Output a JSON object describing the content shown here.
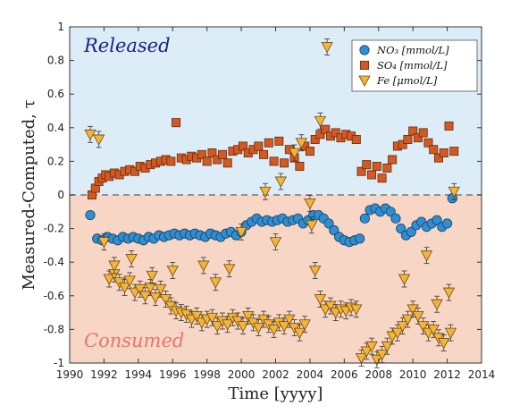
{
  "colors": {
    "released_bg": "#dcedf8",
    "consumed_bg": "#f8d6c6",
    "no3": "#2e8fd0",
    "so4": "#d05a22",
    "fe": "#f4b43a",
    "released_text": "#1a237e",
    "consumed_text": "#e8746a"
  },
  "chart_data": {
    "type": "scatter",
    "xlabel": "Time [yyyy]",
    "ylabel": "Measured-Computed, τ",
    "xlim": [
      1990,
      2014
    ],
    "ylim": [
      -1,
      1
    ],
    "x_ticks": [
      1990,
      1992,
      1994,
      1996,
      1998,
      2000,
      2002,
      2004,
      2006,
      2008,
      2010,
      2012,
      2014
    ],
    "y_ticks": [
      -1,
      -0.8,
      -0.6,
      -0.4,
      -0.2,
      0,
      0.2,
      0.4,
      0.6,
      0.8,
      1
    ],
    "x_tick_labels": [
      "1990",
      "1992",
      "1994",
      "1996",
      "1998",
      "2000",
      "2002",
      "2004",
      "2006",
      "2008",
      "2010",
      "2012",
      "2014"
    ],
    "y_tick_labels": [
      "-1",
      "-0.8",
      "-0.6",
      "-0.4",
      "-0.2",
      "0",
      "0.2",
      "0.4",
      "0.6",
      "0.8",
      "1"
    ],
    "zero_line": "dashed",
    "regions": {
      "released": "Released",
      "consumed": "Consumed"
    },
    "legend": {
      "placement": "top-right",
      "entries": [
        "NO₃ [mmol/L]",
        "SO₄ [mmol/L]",
        "Fe [μmol/L]"
      ]
    },
    "series": [
      {
        "name": "NO₃ [mmol/L]",
        "marker": "circle",
        "color": "#2e8fd0",
        "x": [
          1991.2,
          1991.6,
          1991.9,
          1992.2,
          1992.5,
          1992.8,
          1993.1,
          1993.4,
          1993.7,
          1994.0,
          1994.3,
          1994.6,
          1994.9,
          1995.2,
          1995.5,
          1995.8,
          1996.1,
          1996.4,
          1996.7,
          1997.0,
          1997.3,
          1997.6,
          1997.9,
          1998.2,
          1998.5,
          1998.8,
          1999.1,
          1999.4,
          1999.7,
          2000.0,
          2000.3,
          2000.6,
          2000.9,
          2001.2,
          2001.5,
          2001.8,
          2002.1,
          2002.4,
          2002.7,
          2003.0,
          2003.3,
          2003.6,
          2003.9,
          2004.2,
          2004.5,
          2004.8,
          2005.1,
          2005.4,
          2005.7,
          2006.0,
          2006.3,
          2006.6,
          2006.9,
          2007.2,
          2007.5,
          2007.8,
          2008.1,
          2008.4,
          2008.7,
          2009.0,
          2009.3,
          2009.6,
          2009.9,
          2010.2,
          2010.5,
          2010.8,
          2011.1,
          2011.4,
          2011.7,
          2012.0,
          2012.3
        ],
        "y": [
          -0.12,
          -0.26,
          -0.27,
          -0.25,
          -0.26,
          -0.27,
          -0.25,
          -0.26,
          -0.25,
          -0.26,
          -0.27,
          -0.25,
          -0.26,
          -0.24,
          -0.25,
          -0.24,
          -0.23,
          -0.24,
          -0.23,
          -0.24,
          -0.23,
          -0.24,
          -0.25,
          -0.23,
          -0.24,
          -0.25,
          -0.23,
          -0.22,
          -0.24,
          -0.22,
          -0.18,
          -0.16,
          -0.14,
          -0.16,
          -0.15,
          -0.16,
          -0.15,
          -0.14,
          -0.16,
          -0.15,
          -0.14,
          -0.17,
          -0.15,
          -0.12,
          -0.12,
          -0.14,
          -0.17,
          -0.21,
          -0.25,
          -0.27,
          -0.28,
          -0.27,
          -0.26,
          -0.14,
          -0.09,
          -0.08,
          -0.1,
          -0.08,
          -0.1,
          -0.14,
          -0.2,
          -0.24,
          -0.22,
          -0.18,
          -0.16,
          -0.19,
          -0.17,
          -0.15,
          -0.19,
          -0.17,
          -0.02
        ]
      },
      {
        "name": "SO₄ [mmol/L]",
        "marker": "square",
        "color": "#d05a22",
        "x": [
          1991.3,
          1991.5,
          1991.7,
          1991.9,
          1992.1,
          1992.3,
          1992.6,
          1992.9,
          1993.2,
          1993.5,
          1993.8,
          1994.1,
          1994.4,
          1994.7,
          1995.0,
          1995.3,
          1995.6,
          1995.9,
          1996.2,
          1996.5,
          1996.8,
          1997.1,
          1997.4,
          1997.7,
          1998.0,
          1998.3,
          1998.6,
          1998.9,
          1999.2,
          1999.5,
          1999.8,
          2000.1,
          2000.4,
          2000.7,
          2001.0,
          2001.3,
          2001.6,
          2001.9,
          2002.2,
          2002.5,
          2002.8,
          2003.1,
          2003.4,
          2003.7,
          2004.0,
          2004.3,
          2004.6,
          2004.9,
          2005.2,
          2005.5,
          2005.8,
          2006.1,
          2006.4,
          2006.7,
          2007.0,
          2007.3,
          2007.6,
          2007.9,
          2008.2,
          2008.5,
          2008.8,
          2009.1,
          2009.4,
          2009.7,
          2010.0,
          2010.3,
          2010.6,
          2010.9,
          2011.2,
          2011.5,
          2011.8,
          2012.1,
          2012.4
        ],
        "y": [
          0.0,
          0.04,
          0.08,
          0.1,
          0.12,
          0.11,
          0.13,
          0.12,
          0.14,
          0.15,
          0.14,
          0.17,
          0.16,
          0.18,
          0.19,
          0.2,
          0.21,
          0.2,
          0.43,
          0.22,
          0.21,
          0.23,
          0.22,
          0.24,
          0.2,
          0.25,
          0.21,
          0.24,
          0.19,
          0.26,
          0.27,
          0.29,
          0.25,
          0.27,
          0.29,
          0.24,
          0.31,
          0.2,
          0.32,
          0.19,
          0.27,
          0.22,
          0.17,
          0.29,
          0.26,
          0.33,
          0.36,
          0.39,
          0.35,
          0.37,
          0.34,
          0.36,
          0.35,
          0.33,
          0.14,
          0.18,
          0.12,
          0.17,
          0.1,
          0.16,
          0.21,
          0.29,
          0.3,
          0.33,
          0.38,
          0.34,
          0.37,
          0.31,
          0.27,
          0.22,
          0.25,
          0.41,
          0.26
        ]
      },
      {
        "name": "Fe [μmol/L]",
        "marker": "triangle-down",
        "color": "#f4b43a",
        "x": [
          1991.2,
          1991.7,
          1992.0,
          1992.3,
          1992.6,
          1992.9,
          1993.2,
          1993.5,
          1993.8,
          1994.1,
          1994.4,
          1994.7,
          1995.0,
          1995.3,
          1995.6,
          1995.9,
          1996.2,
          1996.5,
          1996.8,
          1997.1,
          1997.4,
          1997.7,
          1998.0,
          1998.3,
          1998.6,
          1998.9,
          1999.2,
          1999.5,
          1999.8,
          2000.1,
          2000.4,
          2000.7,
          2001.0,
          2001.3,
          2001.6,
          2001.9,
          2002.2,
          2002.5,
          2002.8,
          2003.1,
          2003.4,
          2003.7,
          2004.0,
          2004.3,
          2004.6,
          2004.9,
          2005.2,
          2005.5,
          2005.8,
          2006.1,
          2006.4,
          2006.7,
          2007.0,
          2007.3,
          2007.6,
          2007.9,
          2008.2,
          2008.5,
          2008.8,
          2009.1,
          2009.4,
          2009.7,
          2010.0,
          2010.3,
          2010.6,
          2010.9,
          2011.2,
          2011.5,
          2011.8,
          2012.1,
          2012.4,
          1992.6,
          1993.6,
          1994.8,
          1996.0,
          1997.8,
          1998.5,
          1999.3,
          2000.0,
          2001.4,
          2002.0,
          2002.3,
          2003.1,
          2003.5,
          2004.1,
          2004.6,
          2005.0,
          2009.5,
          2010.8,
          2011.4,
          2012.2
        ],
        "y": [
          0.36,
          0.33,
          -0.28,
          -0.5,
          -0.47,
          -0.52,
          -0.55,
          -0.51,
          -0.58,
          -0.56,
          -0.6,
          -0.55,
          -0.61,
          -0.56,
          -0.62,
          -0.66,
          -0.69,
          -0.7,
          -0.71,
          -0.74,
          -0.72,
          -0.76,
          -0.74,
          -0.73,
          -0.78,
          -0.75,
          -0.77,
          -0.73,
          -0.75,
          -0.78,
          -0.72,
          -0.76,
          -0.79,
          -0.74,
          -0.77,
          -0.8,
          -0.76,
          -0.78,
          -0.74,
          -0.79,
          -0.82,
          -0.77,
          -0.05,
          -0.45,
          -0.62,
          -0.68,
          -0.66,
          -0.7,
          -0.68,
          -0.69,
          -0.67,
          -0.68,
          -0.97,
          -0.93,
          -0.9,
          -0.98,
          -0.95,
          -0.9,
          -0.84,
          -0.82,
          -0.78,
          -0.74,
          -0.68,
          -0.72,
          -0.78,
          -0.82,
          -0.8,
          -0.85,
          -0.88,
          -0.58,
          0.02,
          -0.42,
          -0.38,
          -0.48,
          -0.45,
          -0.42,
          -0.52,
          -0.44,
          -0.22,
          0.02,
          -0.28,
          0.08,
          0.25,
          0.31,
          -0.18,
          0.44,
          0.88,
          -0.5,
          -0.36,
          -0.65,
          -0.82
        ]
      }
    ]
  }
}
